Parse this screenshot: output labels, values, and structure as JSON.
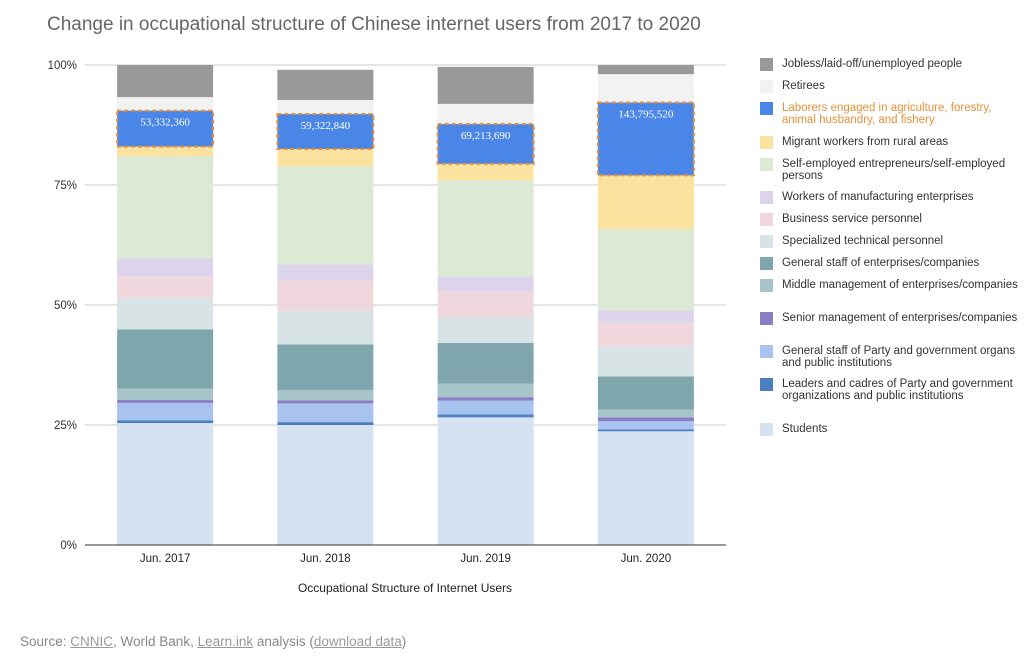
{
  "chart_data": {
    "type": "bar",
    "stacked": true,
    "title": "Change in occupational structure of Chinese internet users from 2017 to 2020",
    "xlabel": "Occupational Structure of Internet Users",
    "ylabel": "",
    "ylim": [
      0,
      100
    ],
    "yticks": [
      "0%",
      "25%",
      "50%",
      "75%",
      "100%"
    ],
    "categories": [
      "Jun. 2017",
      "Jun. 2018",
      "Jun. 2019",
      "Jun. 2020"
    ],
    "grid": true,
    "legend": "right",
    "series": [
      {
        "name": "Students",
        "color": "#d4e2f1",
        "values": [
          25.4,
          25.0,
          26.6,
          23.7
        ]
      },
      {
        "name": "Leaders and cadres of Party and government organizations and public institutions",
        "color": "#4a7fc1",
        "values": [
          0.6,
          0.6,
          0.6,
          0.4
        ]
      },
      {
        "name": "General staff of Party and government organs and public institutions",
        "color": "#a9c3ef",
        "values": [
          3.6,
          3.9,
          2.9,
          1.7
        ]
      },
      {
        "name": "Senior management of enterprises/companies",
        "color": "#8a7cc5",
        "values": [
          0.6,
          0.6,
          0.7,
          0.8
        ]
      },
      {
        "name": "Middle management of enterprises/companies",
        "color": "#a7c4c8",
        "values": [
          2.4,
          2.2,
          2.8,
          1.6
        ]
      },
      {
        "name": "General staff of enterprises/companies",
        "color": "#7fa6ac",
        "values": [
          12.3,
          9.5,
          8.5,
          6.9
        ]
      },
      {
        "name": "Specialized technical personnel",
        "color": "#d8e3e5",
        "values": [
          6.6,
          7.0,
          5.3,
          6.2
        ]
      },
      {
        "name": "Business service personnel",
        "color": "#f0d7dd",
        "values": [
          4.5,
          6.3,
          5.5,
          5.0
        ]
      },
      {
        "name": "Workers of manufacturing enterprises",
        "color": "#dcd4ea",
        "values": [
          3.7,
          3.4,
          3.1,
          2.6
        ]
      },
      {
        "name": "Self-employed entrepreneurs/self-employed persons",
        "color": "#dcead5",
        "values": [
          21.3,
          20.4,
          20.0,
          16.9
        ]
      },
      {
        "name": "Migrant workers from rural areas",
        "color": "#fbe39f",
        "values": [
          2.0,
          3.6,
          3.4,
          11.2
        ]
      },
      {
        "name": "Laborers engaged in agriculture, forestry, animal husbandry, and fishery",
        "color": "#4a86e8",
        "values": [
          7.5,
          7.3,
          8.3,
          15.2
        ],
        "highlight": true
      },
      {
        "name": "Retirees",
        "color": "#f2f2f2",
        "values": [
          2.8,
          2.9,
          4.2,
          5.9
        ]
      },
      {
        "name": "Jobless/laid-off/unemployed people",
        "color": "#999999",
        "values": [
          6.7,
          6.3,
          7.7,
          1.9
        ]
      }
    ],
    "annotations": [
      {
        "series": "Laborers engaged in agriculture, forestry, animal husbandry, and fishery",
        "labels": [
          "53,332,360",
          "59,322,840",
          "69,213,690",
          "143,795,520"
        ]
      }
    ]
  },
  "legend_items": [
    {
      "label": "Jobless/laid-off/unemployed people",
      "color": "#999999"
    },
    {
      "label": "Retirees",
      "color": "#f2f2f2"
    },
    {
      "label": "Laborers engaged in agriculture, forestry, animal husbandry, and fishery",
      "color": "#4a86e8",
      "label_color": "#e69138"
    },
    {
      "label": "Migrant workers from rural areas",
      "color": "#fbe39f"
    },
    {
      "label": "Self-employed entrepreneurs/self-employed persons",
      "color": "#dcead5"
    },
    {
      "label": "Workers of manufacturing enterprises",
      "color": "#dcd4ea"
    },
    {
      "label": "Business service personnel",
      "color": "#f0d7dd"
    },
    {
      "label": "Specialized technical personnel",
      "color": "#d8e3e5"
    },
    {
      "label": "General staff of enterprises/companies",
      "color": "#7fa6ac"
    },
    {
      "label": "Middle management of enterprises/companies",
      "color": "#a7c4c8"
    },
    {
      "label": "Senior management of enterprises/companies",
      "color": "#8a7cc5"
    },
    {
      "label": "General staff of Party and government organs and public institutions",
      "color": "#a9c3ef"
    },
    {
      "label": "Leaders and cadres of Party and government organizations and public institutions",
      "color": "#4a7fc1"
    },
    {
      "label": "Students",
      "color": "#d4e2f1"
    }
  ],
  "footer": {
    "prefix": "Source: ",
    "cnnic": "CNNIC",
    "middle": ", World Bank, ",
    "learnink": "Learn.ink",
    "analysis": " analysis (",
    "download": "download data",
    "suffix": ")"
  }
}
